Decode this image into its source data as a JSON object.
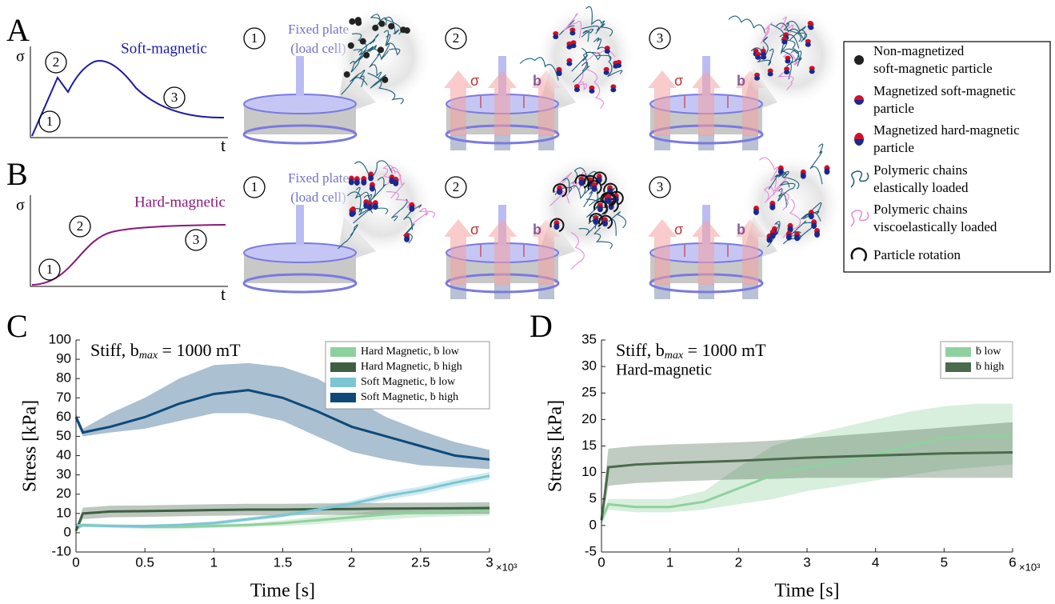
{
  "panel_labels": [
    "A",
    "B",
    "C",
    "D"
  ],
  "schematic": {
    "sigma": "σ",
    "t": "t",
    "b": "b",
    "steps": [
      "1",
      "2",
      "3"
    ],
    "fixed_plate": [
      "Fixed plate",
      "(load cell)"
    ],
    "rows": [
      {
        "label": "Soft-magnetic"
      },
      {
        "label": "Hard-magnetic"
      }
    ]
  },
  "legend": [
    {
      "lines": [
        "Non-magnetized",
        "soft-magnetic particle"
      ]
    },
    {
      "lines": [
        "Magnetized soft-magnetic",
        "particle"
      ]
    },
    {
      "lines": [
        "Magnetized hard-magnetic",
        "particle"
      ]
    },
    {
      "lines": [
        "Polymeric chains",
        "elastically loaded"
      ]
    },
    {
      "lines": [
        "Polymeric chains",
        "viscoelastically loaded"
      ]
    },
    {
      "lines": [
        "Particle rotation"
      ]
    }
  ],
  "chart_data": [
    {
      "type": "line",
      "title_parts": [
        "Stiff, b",
        "max",
        " = 1000 mT"
      ],
      "xlabel": "Time [s]",
      "ylabel": "Stress [kPa]",
      "x_exponent": "×10³",
      "x": [
        0,
        0.05,
        0.25,
        0.5,
        0.75,
        1,
        1.25,
        1.5,
        1.75,
        2,
        2.25,
        2.5,
        2.75,
        3
      ],
      "xlim": [
        0,
        3
      ],
      "xticks": [
        0,
        0.5,
        1,
        1.5,
        2,
        2.5,
        3
      ],
      "ylim": [
        -10,
        100
      ],
      "yticks": [
        -10,
        0,
        10,
        20,
        30,
        40,
        50,
        60,
        70,
        80,
        90,
        100
      ],
      "legend": "upper right",
      "series": [
        {
          "name": "Hard Magnetic, ḃ low",
          "color": "#8fd19e",
          "values": [
            2,
            4,
            3.5,
            3,
            3,
            3.5,
            4,
            5,
            6.5,
            8,
            9.5,
            10.5,
            11,
            11.5
          ],
          "lower": [
            1,
            3,
            2.5,
            2,
            2,
            2.5,
            3,
            3.5,
            4.5,
            6,
            7,
            8,
            8.5,
            9
          ],
          "upper": [
            3,
            5,
            4.5,
            4,
            4,
            4.5,
            5,
            6.5,
            8.5,
            10,
            12,
            13,
            13.5,
            14
          ]
        },
        {
          "name": "Hard Magnetic, ḃ high",
          "color": "#3f5f44",
          "values": [
            1,
            10,
            11,
            11.2,
            11.5,
            11.8,
            12,
            12,
            12.2,
            12.3,
            12.5,
            12.6,
            12.7,
            12.8
          ],
          "lower": [
            0,
            7,
            8,
            8.2,
            8.5,
            8.8,
            9,
            9,
            9.2,
            9.3,
            9.5,
            9.6,
            9.7,
            9.8
          ],
          "upper": [
            2,
            13,
            14,
            14.2,
            14.5,
            14.8,
            15,
            15,
            15.2,
            15.3,
            15.5,
            15.6,
            15.7,
            15.8
          ]
        },
        {
          "name": "Soft Magnetic, ḃ low",
          "color": "#7cc6d4",
          "values": [
            4,
            3.8,
            3.5,
            3.5,
            4,
            5,
            7,
            9,
            12,
            15,
            19,
            22,
            26,
            29.5
          ],
          "lower": [
            3,
            3,
            2.8,
            2.8,
            3.2,
            4,
            6,
            8,
            10.5,
            13.5,
            17,
            20,
            24,
            27.5
          ],
          "upper": [
            5,
            4.6,
            4.2,
            4.2,
            4.8,
            6,
            8,
            10,
            13.5,
            16.5,
            21,
            24,
            28,
            31.5
          ]
        },
        {
          "name": "Soft Magnetic, ḃ high",
          "color": "#0d4a7a",
          "values": [
            60,
            52,
            55,
            60,
            67,
            72,
            74,
            70,
            63,
            55,
            50,
            45,
            40,
            38
          ],
          "lower": [
            58,
            50,
            52,
            54,
            58,
            62,
            62,
            58,
            50,
            42,
            38,
            35,
            34,
            33
          ],
          "upper": [
            62,
            54,
            62,
            70,
            80,
            87,
            88,
            86,
            80,
            70,
            60,
            53,
            47,
            43
          ]
        }
      ]
    },
    {
      "type": "line",
      "title_parts": [
        "Stiff, b",
        "max",
        " = 1000 mT"
      ],
      "subtitle": "Hard-magnetic",
      "xlabel": "Time [s]",
      "ylabel": "Stress [kPa]",
      "x_exponent": "×10³",
      "x": [
        0,
        0.1,
        0.5,
        1,
        1.5,
        2,
        2.5,
        3,
        3.5,
        4,
        4.5,
        5,
        5.5,
        6
      ],
      "xlim": [
        0,
        6
      ],
      "xticks": [
        0,
        1,
        2,
        3,
        4,
        5,
        6
      ],
      "ylim": [
        -5,
        35
      ],
      "yticks": [
        -5,
        0,
        5,
        10,
        15,
        20,
        25,
        30,
        35
      ],
      "legend": "upper right",
      "series": [
        {
          "name": "ḃ low",
          "color": "#8fd19e",
          "values": [
            1,
            4,
            3.5,
            3.5,
            4.5,
            7,
            9.5,
            11,
            12,
            13.5,
            15,
            16.5,
            16.8,
            17
          ],
          "lower": [
            0,
            3,
            2.5,
            2.5,
            3,
            4,
            5,
            6.5,
            7.5,
            8.5,
            9.5,
            10.5,
            11,
            11.5
          ],
          "upper": [
            2,
            5,
            5,
            5,
            6.5,
            11,
            15,
            17,
            18.5,
            20,
            21.5,
            22.5,
            23,
            23
          ]
        },
        {
          "name": "ḃ high",
          "color": "#4a6b4c",
          "values": [
            1,
            11,
            11.5,
            11.8,
            12,
            12.2,
            12.5,
            12.8,
            13,
            13.2,
            13.4,
            13.6,
            13.7,
            13.8
          ],
          "lower": [
            0,
            7.5,
            8,
            8.3,
            8.5,
            8.7,
            8.8,
            9,
            9,
            9,
            9,
            9,
            9,
            9
          ],
          "upper": [
            2,
            14.5,
            15,
            15.3,
            15.5,
            15.7,
            16,
            16.5,
            17,
            17.5,
            18,
            18.5,
            19,
            19.5
          ]
        }
      ]
    }
  ]
}
